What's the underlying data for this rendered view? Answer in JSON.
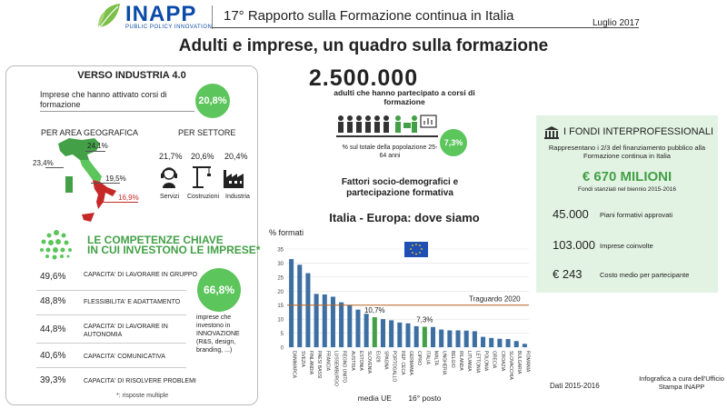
{
  "header": {
    "logo_text": "INAPP",
    "logo_sub": "PUBLIC POLICY INNOVATION",
    "report_title": "17° Rapporto sulla Formazione continua in Italia",
    "date": "Luglio 2017"
  },
  "main_title": "Adulti e imprese, un quadro sulla formazione",
  "industria": {
    "heading": "VERSO INDUSTRIA 4.0",
    "text": "Imprese che hanno attivato corsi di formazione",
    "pct": "20,8%",
    "area_label": "PER AREA GEOGRAFICA",
    "settore_label": "PER SETTORE",
    "areas": [
      {
        "name": "nord-est",
        "pct": "24,1%"
      },
      {
        "name": "nord-ovest",
        "pct": "23,4%"
      },
      {
        "name": "centro",
        "pct": "19,5%"
      },
      {
        "name": "sud",
        "pct": "16,9%"
      }
    ],
    "sectors": [
      {
        "label": "Servizi",
        "pct": "21,7%",
        "icon": "headset-icon"
      },
      {
        "label": "Costruzioni",
        "pct": "20,6%",
        "icon": "crane-icon"
      },
      {
        "label": "Industria",
        "pct": "20,4%",
        "icon": "factory-icon"
      }
    ]
  },
  "competenze": {
    "heading_line1": "LE  COMPETENZE CHIAVE",
    "heading_line2": "IN CUI INVESTONO LE IMPRESE*",
    "items": [
      {
        "pct": "49,6%",
        "label": "CAPACITA' DI LAVORARE IN GRUPPO"
      },
      {
        "pct": "48,8%",
        "label": "FLESSIBILITA' E ADATTAMENTO"
      },
      {
        "pct": "44,8%",
        "label": "CAPACITA' DI LAVORARE IN AUTONOMIA"
      },
      {
        "pct": "40,6%",
        "label": "CAPACITA' COMUNICATIVA"
      },
      {
        "pct": "39,3%",
        "label": "CAPACITA' DI RISOLVERE PROBLEMI"
      }
    ],
    "innov_pct": "66,8%",
    "innov_text": "imprese che investono in INNOVAZIONE (R&S, design, branding, ...)",
    "note": "*: risposte multiple"
  },
  "adulti": {
    "number": "2.500.000",
    "label": "adulti che hanno partecipato a corsi di formazione",
    "pop_caption": "% sul totale della popolazione 25-64 anni",
    "pop_pct": "7,3%"
  },
  "factors_title": "Fattori socio-demografici e partecipazione formativa",
  "chart_data": {
    "type": "bar",
    "title": "Italia - Europa: dove siamo",
    "ylabel": "% formati",
    "ylim": [
      0,
      35
    ],
    "yticks": [
      0,
      5,
      10,
      15,
      20,
      25,
      30,
      35
    ],
    "grid": true,
    "categories": [
      "DANIMARCA",
      "SVEZIA",
      "FINLANDIA",
      "PAESI BASSI",
      "FRANCIA",
      "LUSSEMBURGO",
      "REGNO UNITO",
      "AUSTRIA",
      "ESTONIA",
      "SLOVENIA",
      "EU28",
      "SPAGNA",
      "PORTOGALLO",
      "REP. CECA",
      "GERMANIA",
      "CIPRO",
      "ITALIA",
      "MALTA",
      "UNGHERIA",
      "BELGIO",
      "IRLANDA",
      "LITUANIA",
      "LETTONIA",
      "POLONIA",
      "GRECIA",
      "CROAZIA",
      "SLOVACCHIA",
      "BULGARIA",
      "ROMANIA"
    ],
    "values": [
      31.4,
      29.4,
      26.4,
      19.0,
      18.8,
      18.0,
      16.0,
      14.9,
      13.4,
      11.9,
      10.7,
      10.0,
      9.6,
      8.8,
      8.5,
      7.5,
      7.3,
      7.2,
      6.3,
      6.0,
      6.0,
      5.9,
      5.7,
      3.7,
      3.3,
      3.0,
      2.9,
      2.2,
      1.2
    ],
    "highlight": [
      "EU28",
      "ITALIA"
    ],
    "bar_color": "#3d6fa3",
    "highlight_color": "#43a047",
    "target_value": 15,
    "target_label": "Traguardo 2020",
    "target_color": "#b5651d",
    "annotations": [
      {
        "category": "EU28",
        "value_label": "10,7%",
        "caption": "media UE"
      },
      {
        "category": "ITALIA",
        "value_label": "7,3%",
        "caption": "16° posto"
      }
    ]
  },
  "fondi": {
    "heading": "I FONDI INTERPROFESSIONALI",
    "sub": "Rappresentano i 2/3 del finanziamento pubblico alla Formazione continua in Italia",
    "amount": "€ 670 MILIONI",
    "amount_sub": "Fondi stanziati nel biennio 2015-2016",
    "kpis": [
      {
        "value": "45.000",
        "label": "Piani formativi approvati"
      },
      {
        "value": "103.000",
        "label": "Imprese coinvolte"
      },
      {
        "value": "€ 243",
        "label": "Costo medio per partecipante"
      }
    ]
  },
  "footer": {
    "dati": "Dati 2015-2016",
    "credit": "Infografica a cura dell'Ufficio Stampa INAPP"
  },
  "colors": {
    "brand_blue": "#0b4aa8",
    "accent_green": "#43a047",
    "circle_green": "#5cc55c",
    "italy_red": "#c62828",
    "fondi_bg": "#e3f3e3"
  }
}
